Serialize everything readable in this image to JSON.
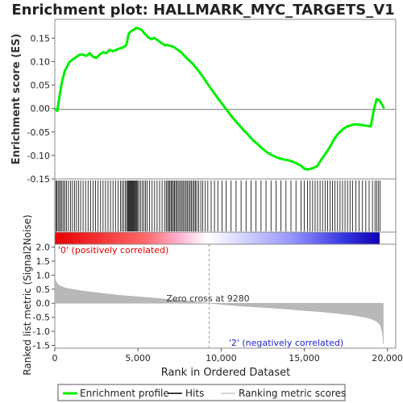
{
  "chart_data": {
    "type": "line",
    "title": "Enrichment plot: HALLMARK_MYC_TARGETS_V1",
    "xlabel": "Rank in Ordered Dataset",
    "xlim": [
      0,
      20500
    ],
    "x_ticks": [
      "0",
      "5,000",
      "10,000",
      "15,000",
      "20,000"
    ],
    "x_tick_values": [
      0,
      5000,
      10000,
      15000,
      20000
    ],
    "enrichment_panel": {
      "ylabel": "Enrichment score (ES)",
      "ylim": [
        -0.15,
        0.19
      ],
      "y_ticks": [
        "-0.15",
        "-0.10",
        "-0.05",
        "0.00",
        "0.05",
        "0.10",
        "0.15"
      ],
      "y_tick_values": [
        -0.15,
        -0.1,
        -0.05,
        0.0,
        0.05,
        0.1,
        0.15
      ],
      "series": [
        {
          "name": "Enrichment profile",
          "color": "#00ee00",
          "x": [
            0,
            150,
            300,
            450,
            600,
            750,
            900,
            1100,
            1300,
            1500,
            1700,
            1900,
            2100,
            2300,
            2500,
            2700,
            2900,
            3100,
            3300,
            3500,
            3700,
            3900,
            4100,
            4300,
            4450,
            4600,
            4750,
            4900,
            5050,
            5200,
            5400,
            5600,
            5800,
            6000,
            6200,
            6400,
            6600,
            6800,
            7000,
            7200,
            7400,
            7600,
            7800,
            8000,
            8300,
            8600,
            8900,
            9200,
            9500,
            9800,
            10100,
            10400,
            10700,
            11000,
            11300,
            11600,
            11900,
            12200,
            12500,
            12800,
            13100,
            13400,
            13700,
            14000,
            14300,
            14600,
            14800,
            15000,
            15200,
            15400,
            15600,
            15800,
            16000,
            16200,
            16400,
            16600,
            16800,
            17000,
            17200,
            17400,
            17600,
            17800,
            18000,
            18200,
            18400,
            18600,
            18800,
            19000,
            19200,
            19350,
            19500,
            19650,
            19800
          ],
          "y": [
            0.0,
            -0.005,
            0.03,
            0.06,
            0.08,
            0.09,
            0.1,
            0.105,
            0.11,
            0.115,
            0.115,
            0.112,
            0.118,
            0.11,
            0.108,
            0.115,
            0.12,
            0.118,
            0.125,
            0.122,
            0.125,
            0.128,
            0.13,
            0.135,
            0.16,
            0.165,
            0.168,
            0.172,
            0.17,
            0.168,
            0.16,
            0.152,
            0.148,
            0.15,
            0.145,
            0.14,
            0.135,
            0.135,
            0.133,
            0.13,
            0.125,
            0.12,
            0.112,
            0.105,
            0.095,
            0.082,
            0.068,
            0.052,
            0.037,
            0.022,
            0.008,
            -0.006,
            -0.02,
            -0.032,
            -0.044,
            -0.055,
            -0.067,
            -0.076,
            -0.086,
            -0.094,
            -0.1,
            -0.105,
            -0.108,
            -0.11,
            -0.113,
            -0.118,
            -0.122,
            -0.128,
            -0.13,
            -0.128,
            -0.126,
            -0.122,
            -0.11,
            -0.1,
            -0.09,
            -0.078,
            -0.065,
            -0.055,
            -0.048,
            -0.042,
            -0.038,
            -0.036,
            -0.034,
            -0.034,
            -0.035,
            -0.036,
            -0.037,
            -0.038,
            0.0,
            0.02,
            0.018,
            0.01,
            0.0
          ]
        }
      ]
    },
    "hits_panel": {
      "label": "Hits",
      "hit_positions": [
        60,
        120,
        200,
        280,
        350,
        430,
        520,
        610,
        700,
        820,
        940,
        1060,
        1180,
        1300,
        1420,
        1550,
        1700,
        1850,
        2000,
        2150,
        2300,
        2450,
        2600,
        2750,
        2900,
        3050,
        3200,
        3350,
        3500,
        3650,
        3800,
        3950,
        4050,
        4150,
        4250,
        4320,
        4380,
        4430,
        4480,
        4530,
        4580,
        4630,
        4680,
        4730,
        4780,
        4830,
        4880,
        4930,
        4980,
        5050,
        5150,
        5250,
        5350,
        5450,
        5550,
        5700,
        5850,
        6000,
        6150,
        6300,
        6450,
        6600,
        6700,
        6780,
        6850,
        6920,
        6990,
        7060,
        7130,
        7200,
        7270,
        7340,
        7420,
        7500,
        7580,
        7660,
        7740,
        7820,
        7900,
        7980,
        8060,
        8140,
        8220,
        8300,
        8380,
        8460,
        8540,
        8650,
        8780,
        8900,
        9050,
        9200,
        9400,
        9600,
        9800,
        10050,
        10300,
        10600,
        10900,
        11200,
        11500,
        11800,
        12100,
        12400,
        12700,
        13000,
        13300,
        13600,
        13900,
        14200,
        14500,
        14800,
        15000,
        15200,
        15350,
        15500,
        15650,
        15800,
        15950,
        16100,
        16250,
        16400,
        16550,
        16700,
        16850,
        17000,
        17150,
        17300,
        17450,
        17600,
        17750,
        17900,
        18100,
        18300,
        18500,
        18700,
        18900,
        19100,
        19250,
        19350,
        19450,
        19550
      ]
    },
    "ranked_panel": {
      "ylabel": "Ranked list metric (Signal2Noise)",
      "legend_label": "Ranking metric scores",
      "ylim": [
        -1.6,
        2.1
      ],
      "y_ticks": [
        "-1.5",
        "-1.0",
        "-0.5",
        "0.0",
        "0.5",
        "1.0",
        "1.5",
        "2.0"
      ],
      "y_tick_values": [
        -1.5,
        -1.0,
        -0.5,
        0.0,
        0.5,
        1.0,
        1.5,
        2.0
      ],
      "x": [
        0,
        50,
        150,
        300,
        600,
        1000,
        1500,
        2000,
        3000,
        4000,
        5000,
        6000,
        7000,
        8000,
        9280,
        10000,
        11000,
        12000,
        13000,
        14000,
        15000,
        16000,
        17000,
        18000,
        18500,
        19000,
        19300,
        19500,
        19600,
        19700,
        19750
      ],
      "values": [
        0.95,
        0.8,
        0.7,
        0.62,
        0.55,
        0.5,
        0.45,
        0.41,
        0.34,
        0.28,
        0.23,
        0.18,
        0.13,
        0.08,
        0.0,
        -0.04,
        -0.09,
        -0.13,
        -0.17,
        -0.21,
        -0.26,
        -0.3,
        -0.36,
        -0.43,
        -0.48,
        -0.55,
        -0.63,
        -0.72,
        -0.82,
        -1.05,
        -1.45
      ],
      "zero_cross_label": "Zero cross at 9280",
      "zero_cross_rank": 9280,
      "positive_label": "'0' (positively correlated)",
      "negative_label": "'2' (negatively correlated)",
      "positive_color": "#ff0000",
      "negative_color": "#0000ff"
    },
    "legend": [
      {
        "label": "Enrichment profile",
        "color": "#00ee00"
      },
      {
        "label": "Hits",
        "color": "#000000"
      },
      {
        "label": "Ranking metric scores",
        "color": "#c8c8c8"
      }
    ],
    "legend_position": "bottom",
    "grid": false
  }
}
